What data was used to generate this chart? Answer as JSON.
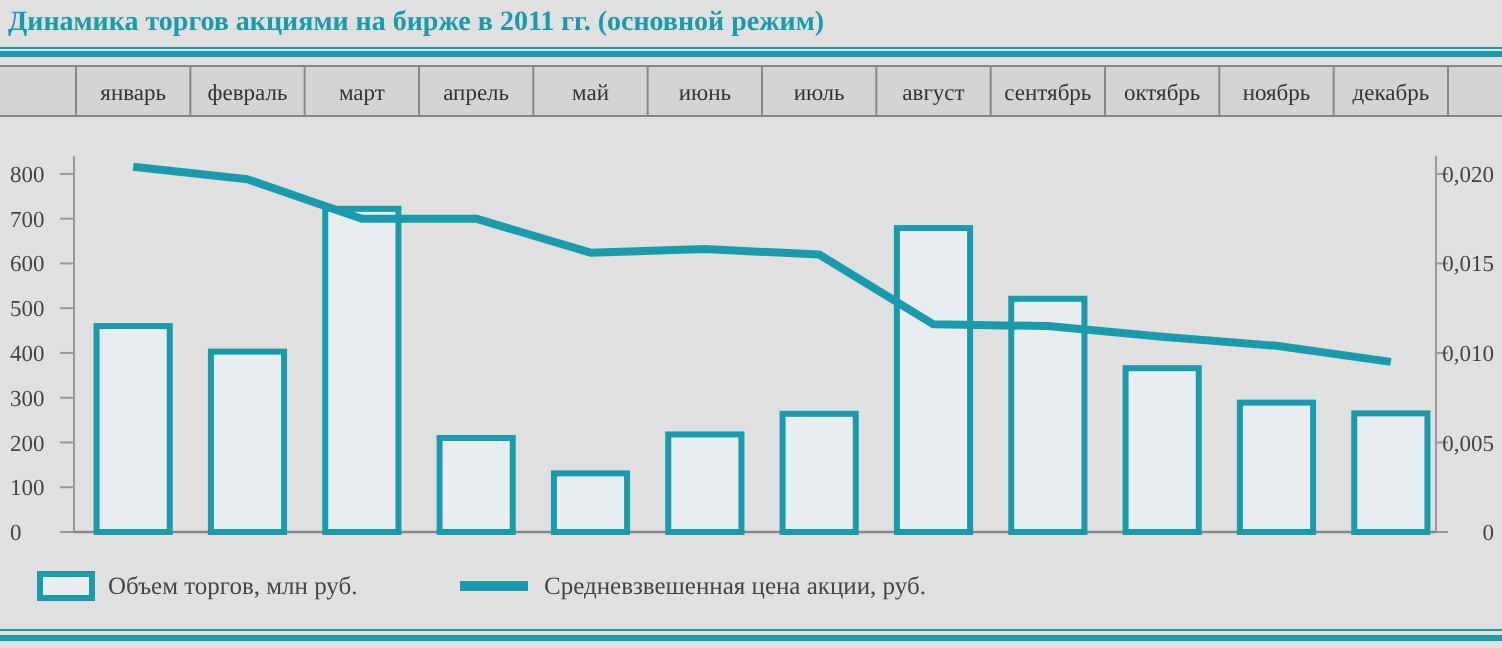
{
  "chart_data": {
    "type": "bar",
    "title": "Динамика торгов акциями на бирже в 2011 гг. (основной режим)",
    "categories": [
      "январь",
      "февраль",
      "март",
      "апрель",
      "май",
      "июнь",
      "июль",
      "август",
      "сентябрь",
      "октябрь",
      "ноябрь",
      "декабрь"
    ],
    "series": [
      {
        "name": "Объем торгов, млн руб.",
        "color": "#1a9bab",
        "values": [
          460,
          403,
          722,
          210,
          131,
          218,
          264,
          679,
          521,
          366,
          289,
          265
        ]
      },
      {
        "name": "Средневзвешенная цена акции, руб.",
        "type": "line",
        "axis": "y2",
        "color": "#1a9bab",
        "values": [
          0.0204,
          0.0197,
          0.0175,
          0.0175,
          0.0156,
          0.0158,
          0.0155,
          0.0116,
          0.0115,
          0.0109,
          0.0104,
          0.0095
        ]
      }
    ],
    "ylim": [
      0,
      840
    ],
    "yticks": [
      0,
      100,
      200,
      300,
      400,
      500,
      600,
      700,
      800
    ],
    "y2lim": [
      0,
      0.021
    ],
    "y2ticks": [
      {
        "value": 0,
        "label": "0"
      },
      {
        "value": 0.005,
        "label": "0,005"
      },
      {
        "value": 0.01,
        "label": "0,010"
      },
      {
        "value": 0.015,
        "label": "0,015"
      },
      {
        "value": 0.02,
        "label": "0,020"
      }
    ],
    "legend": "bottom",
    "grid": false
  }
}
